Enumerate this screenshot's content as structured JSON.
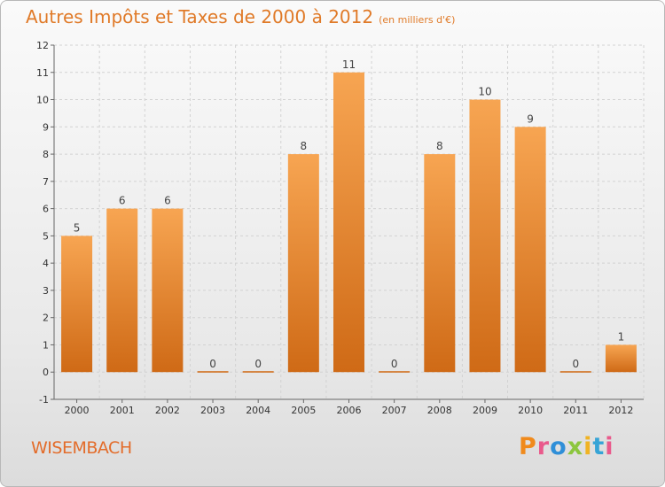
{
  "chart_data": {
    "type": "bar",
    "title": "Autres Impôts et Taxes de 2000 à 2012",
    "subtitle": "(en milliers d'€)",
    "categories": [
      "2000",
      "2001",
      "2002",
      "2003",
      "2004",
      "2005",
      "2006",
      "2007",
      "2008",
      "2009",
      "2010",
      "2011",
      "2012"
    ],
    "values": [
      5,
      6,
      6,
      0,
      0,
      8,
      11,
      0,
      8,
      10,
      9,
      0,
      1
    ],
    "ylim": [
      -1,
      12
    ],
    "yticks": [
      -1,
      0,
      1,
      2,
      3,
      4,
      5,
      6,
      7,
      8,
      9,
      10,
      11,
      12
    ],
    "xlabel": "",
    "ylabel": "",
    "grid": true,
    "bar_color": "#f29a44",
    "bar_color_dark": "#d06a14"
  },
  "location": "WISEMBACH",
  "logo": {
    "letters": [
      "P",
      "r",
      "o",
      "x",
      "i",
      "t",
      "i"
    ]
  }
}
